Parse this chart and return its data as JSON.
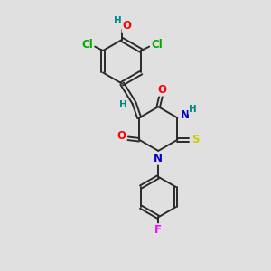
{
  "bg_color": "#e0e0e0",
  "bond_color": "#2b2b2b",
  "atom_colors": {
    "O": "#ff0000",
    "N": "#0000cd",
    "S": "#cccc00",
    "Cl": "#00aa00",
    "F": "#ff00ff",
    "H": "#008888",
    "C": "#2b2b2b"
  },
  "font_size": 8.5,
  "line_width": 1.4
}
